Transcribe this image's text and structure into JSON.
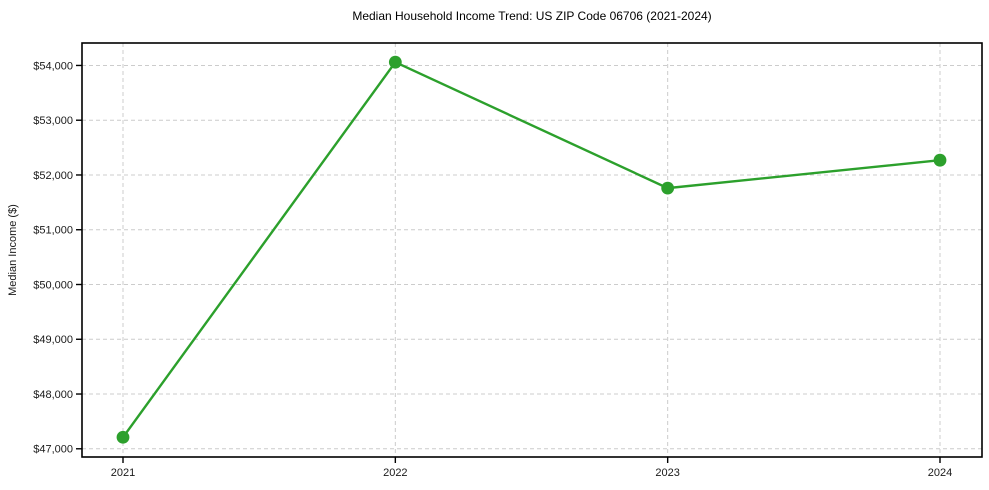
{
  "figure": {
    "title": "Median Household Income Trend: US ZIP Code 06706 (2021-2024)"
  },
  "chart_data": {
    "type": "line",
    "title": "Median Household Income Trend: US ZIP Code 06706 (2021-2024)",
    "x": [
      "2021",
      "2022",
      "2023",
      "2024"
    ],
    "series": [
      {
        "name": "Median Household Income",
        "values": [
          47210,
          54060,
          51760,
          52270
        ],
        "color": "#2ca02c",
        "marker": "circle"
      }
    ],
    "xlabel": "",
    "ylabel": "Median Income ($)",
    "ylim": [
      46850,
      54410
    ],
    "yticks": [
      47000,
      48000,
      49000,
      50000,
      51000,
      52000,
      53000,
      54000
    ],
    "ytick_labels": [
      "$47,000",
      "$48,000",
      "$49,000",
      "$50,000",
      "$51,000",
      "$52,000",
      "$53,000",
      "$54,000"
    ],
    "grid": true,
    "grid_style": "dashed",
    "legend_position": "none",
    "colors": {
      "background": "#ffffff",
      "grid": "#cccccc",
      "axis": "#000000",
      "tick_text": "#1a1a1a",
      "title_text": "#000000"
    }
  }
}
